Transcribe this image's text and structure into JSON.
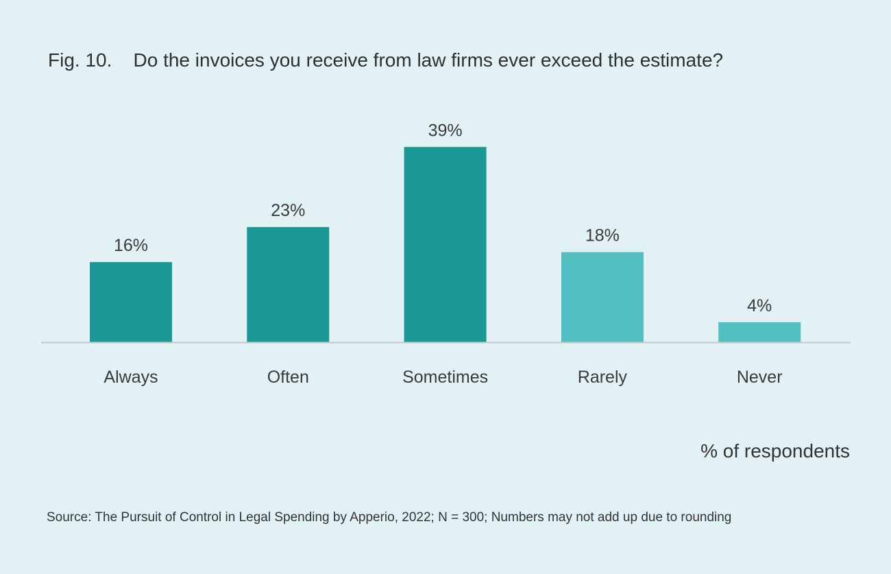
{
  "chart_data": {
    "type": "bar",
    "title": "Fig. 10.    Do the invoices you receive from law firms ever exceed the estimate?",
    "categories": [
      "Always",
      "Often",
      "Sometimes",
      "Rarely",
      "Never"
    ],
    "values": [
      16,
      23,
      39,
      18,
      4
    ],
    "value_labels": [
      "16%",
      "23%",
      "39%",
      "18%",
      "4%"
    ],
    "bar_colors": [
      "#1a9896",
      "#1a9896",
      "#1a9896",
      "#52bec0",
      "#52bec0"
    ],
    "xlabel": "",
    "ylabel": "% of respondents",
    "ylim": [
      0,
      40
    ],
    "grid": false
  },
  "source": "Source: The Pursuit of Control in Legal Spending by Apperio, 2022; N = 300; Numbers may not add up due to rounding",
  "colors": {
    "background": "#e2f1f4",
    "axis": "#c4c8c9"
  }
}
